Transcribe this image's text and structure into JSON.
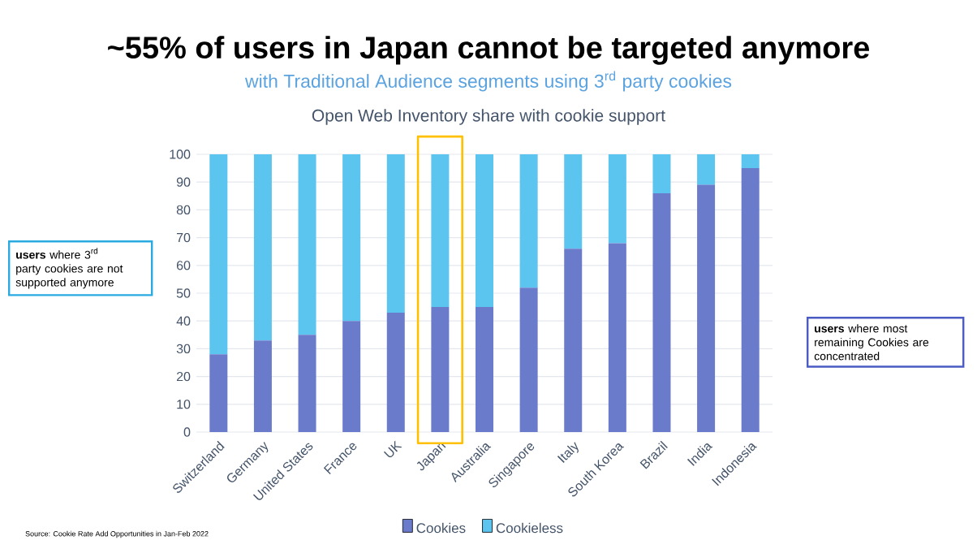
{
  "chart_data": {
    "type": "bar",
    "stacked": true,
    "title": "~55% of users in Japan cannot be targeted anymore",
    "subtitle": "with Traditional Audience segments using 3$^{rd}$ party cookies",
    "categories": [
      "Switzerland",
      "Germany",
      "United States",
      "France",
      "UK",
      "Japan",
      "Australia",
      "Singapore",
      "Italy",
      "South Korea",
      "Brazil",
      "India",
      "Indonesia"
    ],
    "series": [
      {
        "name": "Cookies",
        "color": "#6b7bcb",
        "values": [
          28,
          33,
          35,
          40,
          43,
          45,
          45,
          52,
          66,
          68,
          86,
          89,
          95
        ]
      },
      {
        "name": "Cookieless",
        "color": "#5bc4ef",
        "values": [
          72,
          67,
          65,
          60,
          57,
          55,
          55,
          48,
          34,
          32,
          14,
          11,
          5
        ]
      }
    ],
    "ylim": [
      0,
      100
    ],
    "yticks": [
      0,
      10,
      20,
      30,
      40,
      50,
      60,
      70,
      80,
      90,
      100
    ],
    "grid": "y",
    "legend": "bottom",
    "annotations": [
      "Open Web Inventory share with cookie support",
      "**users** where 3$^{rd}$ party cookies are not supported anymore",
      "**users** where most remaining Cookies are concentrated",
      "Source: Cookie Rate Add Opportunities in Jan-Feb 2022"
    ]
  }
}
